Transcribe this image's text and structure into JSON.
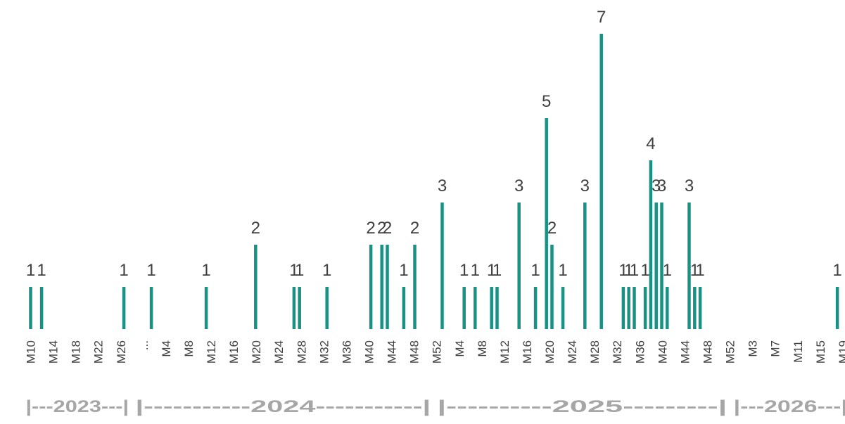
{
  "chart_data": {
    "type": "bar",
    "bar_color": "#1a9185",
    "ylim": [
      0,
      7
    ],
    "x_tick_labels": [
      "M10",
      "M14",
      "M18",
      "M22",
      "M26",
      "...",
      "M4",
      "M8",
      "M12",
      "M16",
      "M20",
      "M24",
      "M28",
      "M32",
      "M36",
      "M40",
      "M44",
      "M48",
      "M52",
      "M4",
      "M8",
      "M12",
      "M16",
      "M20",
      "M24",
      "M28",
      "M32",
      "M36",
      "M40",
      "M44",
      "M48",
      "M52",
      "M3",
      "M7",
      "M11",
      "M15",
      "M19"
    ],
    "periods": [
      {
        "year": "2023",
        "label": "|---2023---|",
        "start_week": 10,
        "end_week": 27
      },
      {
        "year": "2024",
        "label": "|-----------2024-----------|",
        "start_week": 1,
        "end_week": 53
      },
      {
        "year": "2025",
        "label": "|----------2025---------|",
        "start_week": 1,
        "end_week": 52
      },
      {
        "year": "2026",
        "label": "|---2026---|",
        "start_week": 1,
        "end_week": 20
      }
    ],
    "bars": [
      {
        "year": "2023",
        "week": 10,
        "value": 1
      },
      {
        "year": "2023",
        "week": 12,
        "value": 1
      },
      {
        "year": "2023",
        "week": 27,
        "value": 1
      },
      {
        "year": "2024",
        "week": 3,
        "value": 1
      },
      {
        "year": "2024",
        "week": 13,
        "value": 1
      },
      {
        "year": "2024",
        "week": 22,
        "value": 2
      },
      {
        "year": "2024",
        "week": 29,
        "value": 1
      },
      {
        "year": "2024",
        "week": 30,
        "value": 1
      },
      {
        "year": "2024",
        "week": 35,
        "value": 1
      },
      {
        "year": "2024",
        "week": 43,
        "value": 2
      },
      {
        "year": "2024",
        "week": 45,
        "value": 2
      },
      {
        "year": "2024",
        "week": 46,
        "value": 2
      },
      {
        "year": "2024",
        "week": 49,
        "value": 1
      },
      {
        "year": "2024",
        "week": 51,
        "value": 2
      },
      {
        "year": "2025",
        "week": 1,
        "value": 3
      },
      {
        "year": "2025",
        "week": 5,
        "value": 1
      },
      {
        "year": "2025",
        "week": 7,
        "value": 1
      },
      {
        "year": "2025",
        "week": 10,
        "value": 1
      },
      {
        "year": "2025",
        "week": 11,
        "value": 1
      },
      {
        "year": "2025",
        "week": 15,
        "value": 3
      },
      {
        "year": "2025",
        "week": 18,
        "value": 1
      },
      {
        "year": "2025",
        "week": 20,
        "value": 5
      },
      {
        "year": "2025",
        "week": 21,
        "value": 2
      },
      {
        "year": "2025",
        "week": 23,
        "value": 1
      },
      {
        "year": "2025",
        "week": 27,
        "value": 3
      },
      {
        "year": "2025",
        "week": 30,
        "value": 7
      },
      {
        "year": "2025",
        "week": 34,
        "value": 1
      },
      {
        "year": "2025",
        "week": 35,
        "value": 1
      },
      {
        "year": "2025",
        "week": 36,
        "value": 1
      },
      {
        "year": "2025",
        "week": 38,
        "value": 1
      },
      {
        "year": "2025",
        "week": 39,
        "value": 4
      },
      {
        "year": "2025",
        "week": 40,
        "value": 3
      },
      {
        "year": "2025",
        "week": 41,
        "value": 3
      },
      {
        "year": "2025",
        "week": 42,
        "value": 1
      },
      {
        "year": "2025",
        "week": 46,
        "value": 3
      },
      {
        "year": "2025",
        "week": 47,
        "value": 1
      },
      {
        "year": "2025",
        "week": 48,
        "value": 1
      },
      {
        "year": "2026",
        "week": 19,
        "value": 1
      }
    ],
    "xlabel": "",
    "ylabel": "",
    "title": "",
    "legend": "none",
    "grid": false
  }
}
